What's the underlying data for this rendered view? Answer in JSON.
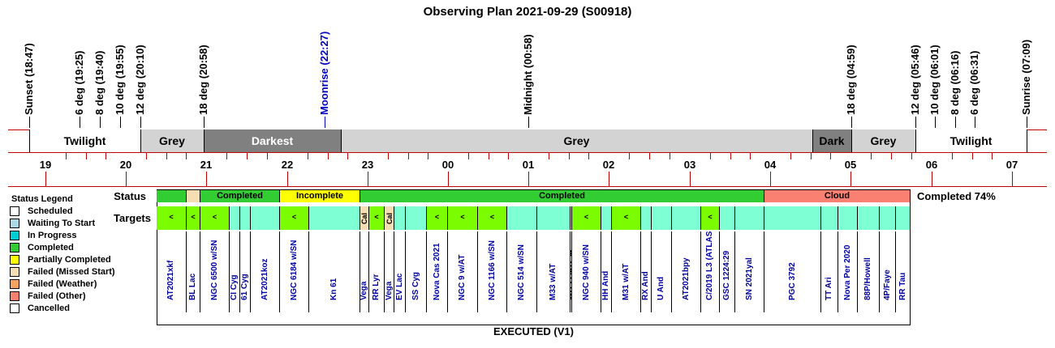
{
  "title": "Observing Plan 2021-09-29 (S00918)",
  "events": [
    {
      "label": "Sunset (18:47)",
      "color": "#000000"
    },
    {
      "label": "6 deg (19:25)",
      "color": "#000000"
    },
    {
      "label": "8 deg (19:40)",
      "color": "#000000"
    },
    {
      "label": "10 deg (19:55)",
      "color": "#000000"
    },
    {
      "label": "12 deg (20:10)",
      "color": "#000000"
    },
    {
      "label": "18 deg (20:58)",
      "color": "#000000"
    },
    {
      "label": "Moonrise (22:27)",
      "color": "#0000c0"
    },
    {
      "label": "Midnight (00:58)",
      "color": "#000000"
    },
    {
      "label": "18 deg (04:59)",
      "color": "#000000"
    },
    {
      "label": "12 deg (05:46)",
      "color": "#000000"
    },
    {
      "label": "10 deg (06:01)",
      "color": "#000000"
    },
    {
      "label": "8 deg (06:16)",
      "color": "#000000"
    },
    {
      "label": "6 deg (06:31)",
      "color": "#000000"
    },
    {
      "label": "Sunrise (07:09)",
      "color": "#000000"
    }
  ],
  "bands": [
    {
      "label": "Twilight",
      "color": "#ffffff"
    },
    {
      "label": "Grey",
      "color": "#d3d3d3"
    },
    {
      "label": "Darkest",
      "color": "#808080",
      "text_color": "#ffffff"
    },
    {
      "label": "Grey",
      "color": "#d3d3d3"
    },
    {
      "label": "Dark",
      "color": "#808080"
    },
    {
      "label": "Grey",
      "color": "#d3d3d3"
    },
    {
      "label": "Twilight",
      "color": "#ffffff"
    }
  ],
  "hours": [
    "19",
    "20",
    "21",
    "22",
    "23",
    "00",
    "01",
    "02",
    "03",
    "04",
    "05",
    "06",
    "07"
  ],
  "legend": {
    "title": "Status Legend",
    "items": [
      {
        "label": "Scheduled",
        "color": "#ffffff"
      },
      {
        "label": "Waiting To Start",
        "color": "#add8e6"
      },
      {
        "label": "In Progress",
        "color": "#00ced1"
      },
      {
        "label": "Completed",
        "color": "#32cd32"
      },
      {
        "label": "Partially Completed",
        "color": "#ffff00"
      },
      {
        "label": "Failed (Missed Start)",
        "color": "#f5deb3"
      },
      {
        "label": "Failed (Weather)",
        "color": "#f4a460"
      },
      {
        "label": "Failed (Other)",
        "color": "#fa8072"
      },
      {
        "label": "Cancelled",
        "color": "#ffffff"
      }
    ]
  },
  "status_label": "Status",
  "targets_label": "Targets",
  "status_segments": [
    {
      "label": "",
      "color": "#32cd32"
    },
    {
      "label": "",
      "color": "#f5deb3"
    },
    {
      "label": "Completed",
      "color": "#32cd32"
    },
    {
      "label": "Incomplete",
      "color": "#ffff00"
    },
    {
      "label": "Completed",
      "color": "#32cd32"
    },
    {
      "label": "Cloud",
      "color": "#fa8072"
    }
  ],
  "completed_summary": "Completed 74%",
  "targets": [
    {
      "name": "AT2021xkf",
      "mark": "<",
      "color": "#7cfc00"
    },
    {
      "name": "BL Lac",
      "mark": "<",
      "color": "#7cfc00"
    },
    {
      "name": "NGC 6500 w/SN",
      "mark": "<",
      "color": "#7cfc00"
    },
    {
      "name": "CI Cyg",
      "mark": "",
      "color": "#7fffd4"
    },
    {
      "name": "61 Cyg",
      "mark": "",
      "color": "#7fffd4"
    },
    {
      "name": "AT2021koz",
      "mark": "",
      "color": "#7fffd4"
    },
    {
      "name": "NGC 6184 w/SN",
      "mark": "<",
      "color": "#7cfc00"
    },
    {
      "name": "Kn 61",
      "mark": "",
      "color": "#7fffd4"
    },
    {
      "name": "Vega",
      "mark": "Cal",
      "color": "#f5deb3"
    },
    {
      "name": "RR Lyr",
      "mark": "<",
      "color": "#7cfc00"
    },
    {
      "name": "Vega",
      "mark": "Cal",
      "color": "#f5deb3"
    },
    {
      "name": "EV Lac",
      "mark": "",
      "color": "#7fffd4"
    },
    {
      "name": "SS Cyg",
      "mark": "",
      "color": "#7fffd4"
    },
    {
      "name": "Nova Cas 2021",
      "mark": "<",
      "color": "#7cfc00"
    },
    {
      "name": "NGC 9 w/AT",
      "mark": "<",
      "color": "#7cfc00"
    },
    {
      "name": "NGC 1166 w/SN",
      "mark": "<",
      "color": "#7cfc00"
    },
    {
      "name": "NGC 514 w/SN",
      "mark": "",
      "color": "#7fffd4"
    },
    {
      "name": "M33 w/AT",
      "mark": "",
      "color": "#7fffd4"
    },
    {
      "name": "WDS GRB 34",
      "mark": "",
      "color": "#7fffd4"
    },
    {
      "name": "NGC 940 w/SN",
      "mark": "<",
      "color": "#7cfc00"
    },
    {
      "name": "HH And",
      "mark": "",
      "color": "#7fffd4"
    },
    {
      "name": "M31 w/AT",
      "mark": "<",
      "color": "#7cfc00"
    },
    {
      "name": "RX And",
      "mark": "",
      "color": "#7fffd4"
    },
    {
      "name": "U And",
      "mark": "",
      "color": "#7fffd4"
    },
    {
      "name": "AT2021bpy",
      "mark": "",
      "color": "#7fffd4"
    },
    {
      "name": "C/2019 L3 (ATLAS)",
      "mark": "<",
      "color": "#7cfc00"
    },
    {
      "name": "GSC 1224:29",
      "mark": "",
      "color": "#7fffd4"
    },
    {
      "name": "SN 2021yal",
      "mark": "",
      "color": "#7fffd4"
    },
    {
      "name": "PGC 3792",
      "mark": "",
      "color": "#7fffd4"
    },
    {
      "name": "TT Ari",
      "mark": "",
      "color": "#7fffd4"
    },
    {
      "name": "Nova Per 2020",
      "mark": "",
      "color": "#7fffd4"
    },
    {
      "name": "88P/Howell",
      "mark": "",
      "color": "#7fffd4"
    },
    {
      "name": "4P/Faye",
      "mark": "",
      "color": "#7fffd4"
    },
    {
      "name": "RR Tau",
      "mark": "",
      "color": "#7fffd4"
    }
  ],
  "footer": "EXECUTED (V1)"
}
